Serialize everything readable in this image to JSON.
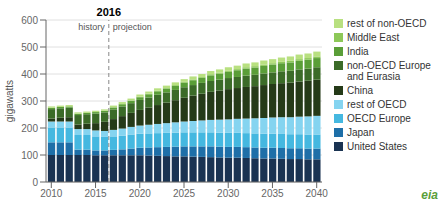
{
  "chart_data": {
    "type": "bar",
    "stacked": true,
    "ylabel": "gigawatts",
    "x": [
      2010,
      2011,
      2012,
      2013,
      2014,
      2015,
      2016,
      2017,
      2018,
      2019,
      2020,
      2021,
      2022,
      2023,
      2024,
      2025,
      2026,
      2027,
      2028,
      2029,
      2030,
      2031,
      2032,
      2033,
      2034,
      2035,
      2036,
      2037,
      2038,
      2039,
      2040
    ],
    "xlim": [
      2009.4,
      2040.6
    ],
    "xticks": [
      2010,
      2015,
      2020,
      2025,
      2030,
      2035,
      2040
    ],
    "ylim": [
      0,
      600
    ],
    "yticks": [
      0,
      100,
      200,
      300,
      400,
      500,
      600
    ],
    "grid": true,
    "legend": "right",
    "series": [
      {
        "name": "United States",
        "color": "#1a3352",
        "values": [
          100,
          100,
          100,
          100,
          100,
          99,
          99,
          99,
          99,
          99,
          99,
          98,
          97,
          96,
          95,
          95,
          94,
          93,
          92,
          91,
          90,
          90,
          89,
          88,
          87,
          87,
          86,
          85,
          85,
          84,
          84
        ]
      },
      {
        "name": "Japan",
        "color": "#1e6fa8",
        "values": [
          47,
          47,
          47,
          20,
          20,
          18,
          18,
          20,
          22,
          25,
          28,
          30,
          32,
          34,
          36,
          37,
          38,
          39,
          40,
          40,
          40,
          40,
          40,
          40,
          40,
          40,
          40,
          40,
          40,
          40,
          40
        ]
      },
      {
        "name": "OECD Europe",
        "color": "#45b8e0",
        "values": [
          55,
          55,
          55,
          54,
          54,
          52,
          50,
          50,
          51,
          52,
          52,
          52,
          52,
          52,
          52,
          52,
          52,
          52,
          52,
          52,
          52,
          52,
          52,
          52,
          52,
          52,
          52,
          52,
          52,
          52,
          52
        ]
      },
      {
        "name": "rest of OECD",
        "color": "#85d4f0",
        "values": [
          22,
          22,
          22,
          22,
          22,
          22,
          22,
          24,
          26,
          28,
          30,
          32,
          34,
          36,
          38,
          40,
          42,
          44,
          46,
          48,
          50,
          52,
          54,
          56,
          58,
          60,
          62,
          63,
          65,
          67,
          69
        ]
      },
      {
        "name": "China",
        "color": "#253a18",
        "values": [
          11,
          14,
          16,
          17,
          20,
          27,
          34,
          40,
          46,
          52,
          58,
          64,
          70,
          76,
          82,
          88,
          94,
          99,
          104,
          108,
          112,
          114,
          117,
          119,
          122,
          124,
          126,
          128,
          130,
          132,
          134
        ]
      },
      {
        "name": "non-OECD Europe\nand Eurasia",
        "color": "#3b6b28",
        "values": [
          35,
          35,
          35,
          35,
          35,
          35,
          35,
          36,
          36,
          36,
          37,
          37,
          38,
          38,
          38,
          39,
          39,
          40,
          40,
          40,
          41,
          41,
          42,
          42,
          43,
          43,
          44,
          44,
          45,
          45,
          46
        ]
      },
      {
        "name": "India",
        "color": "#5a9e38",
        "values": [
          5,
          5,
          5,
          5,
          5,
          6,
          6,
          7,
          8,
          9,
          10,
          12,
          13,
          14,
          15,
          17,
          18,
          19,
          21,
          22,
          23,
          25,
          26,
          27,
          28,
          29,
          30,
          31,
          32,
          33,
          34
        ]
      },
      {
        "name": "Middle East",
        "color": "#8dc858",
        "values": [
          0,
          0,
          0,
          0,
          0,
          0,
          0,
          1,
          1,
          1,
          2,
          2,
          2,
          2,
          3,
          3,
          3,
          3,
          4,
          4,
          4,
          4,
          5,
          5,
          5,
          5,
          5,
          6,
          6,
          6,
          6
        ]
      },
      {
        "name": "rest of non-OECD",
        "color": "#b8e080",
        "values": [
          5,
          5,
          5,
          5,
          5,
          5,
          5,
          6,
          7,
          7,
          8,
          8,
          9,
          9,
          10,
          10,
          11,
          11,
          12,
          12,
          13,
          13,
          14,
          14,
          15,
          15,
          16,
          16,
          17,
          17,
          18
        ]
      }
    ],
    "annotations": [
      {
        "x": 2016.5,
        "text": "2016",
        "line_style": "dashed"
      },
      {
        "x": 2016.5,
        "text": "history"
      },
      {
        "x": 2016.5,
        "text": "projection"
      },
      {
        "text": "eia"
      }
    ]
  }
}
